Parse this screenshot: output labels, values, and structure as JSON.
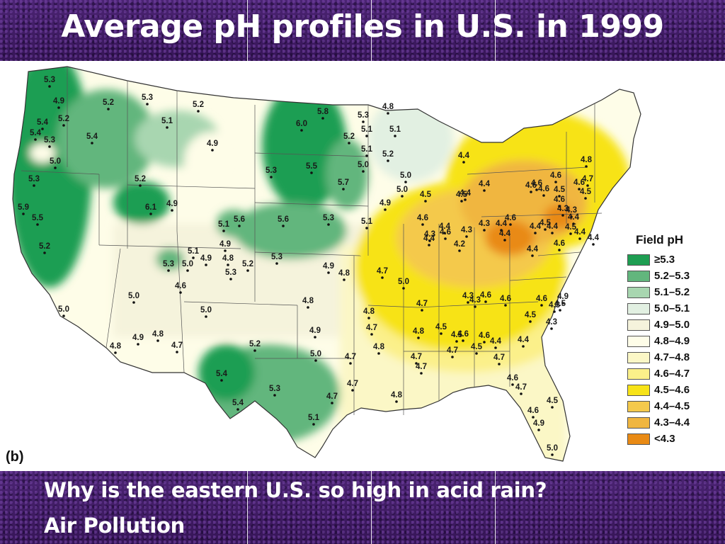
{
  "slide": {
    "title": "Average pH profiles in U.S. in 1999",
    "question": "Why is the eastern U.S. so high in acid rain?",
    "answer": "Air Pollution"
  },
  "map": {
    "panel_label": "(b)",
    "legend_title": "Field pH",
    "legend": [
      {
        "label": "≥5.3",
        "color": "#1e9e52"
      },
      {
        "label": "5.2–5.3",
        "color": "#62b67d"
      },
      {
        "label": "5.1–5.2",
        "color": "#a8d6b0"
      },
      {
        "label": "5.0–5.1",
        "color": "#e2f0e2"
      },
      {
        "label": "4.9–5.0",
        "color": "#f5f3dc"
      },
      {
        "label": "4.8–4.9",
        "color": "#fefde8"
      },
      {
        "label": "4.7–4.8",
        "color": "#fbf7c6"
      },
      {
        "label": "4.6–4.7",
        "color": "#fbf08a"
      },
      {
        "label": "4.5–4.6",
        "color": "#f7e318"
      },
      {
        "label": "4.4–4.5",
        "color": "#f4c94c"
      },
      {
        "label": "4.3–4.4",
        "color": "#f0b640"
      },
      {
        "label": "<4.3",
        "color": "#e98a14"
      }
    ],
    "stations": [
      "5.3",
      "4.9",
      "5.2",
      "5.4",
      "5.2",
      "5.4",
      "5.3",
      "5.4",
      "5.0",
      "5.3",
      "5.2",
      "5.9",
      "5.5",
      "5.2",
      "5.3",
      "5.1",
      "4.9",
      "5.2",
      "6.1",
      "4.9",
      "5.8",
      "6.0",
      "5.3",
      "5.5",
      "5.7",
      "5.3",
      "5.1",
      "5.2",
      "5.0",
      "5.1",
      "4.8",
      "5.1",
      "5.2",
      "5.0",
      "5.0",
      "4.9",
      "5.6",
      "5.6",
      "5.3",
      "5.1",
      "4.9",
      "5.1",
      "4.9",
      "4.8",
      "5.3",
      "5.0",
      "5.3",
      "5.2",
      "5.3",
      "4.9",
      "4.8",
      "4.7",
      "5.0",
      "5.1",
      "4.6",
      "5.0",
      "5.0",
      "4.8",
      "4.8",
      "4.7",
      "4.8",
      "5.2",
      "5.0",
      "4.9",
      "4.9",
      "5.0",
      "4.8",
      "4.7",
      "4.8",
      "5.4",
      "5.4",
      "5.3",
      "4.7",
      "4.7",
      "4.7",
      "4.8",
      "5.1",
      "4.8",
      "4.7",
      "4.7",
      "4.6",
      "4.6",
      "4.7",
      "4.7",
      "4.6",
      "4.7",
      "4.5",
      "4.6",
      "4.9",
      "5.0",
      "4.7",
      "4.3",
      "4.6",
      "4.3",
      "4.6",
      "4.6",
      "4.9",
      "4.5",
      "4.5",
      "4.5",
      "4.4",
      "4.4",
      "4.3",
      "4.3",
      "4.5",
      "4.5",
      "4.4",
      "4.3",
      "4.2",
      "4.3",
      "4.3",
      "4.4",
      "4.6",
      "4.4",
      "4.4",
      "4.4",
      "4.5",
      "4.4",
      "4.5",
      "4.6",
      "4.3",
      "4.4",
      "4.3",
      "4.4",
      "4.4",
      "4.5",
      "4.6",
      "4.4",
      "4.6",
      "4.4",
      "4.5",
      "4.4",
      "4.4",
      "4.6",
      "4.6",
      "4.6",
      "4.5",
      "4.6",
      "4.5",
      "4.6",
      "4.6",
      "4.7",
      "4.8"
    ]
  }
}
